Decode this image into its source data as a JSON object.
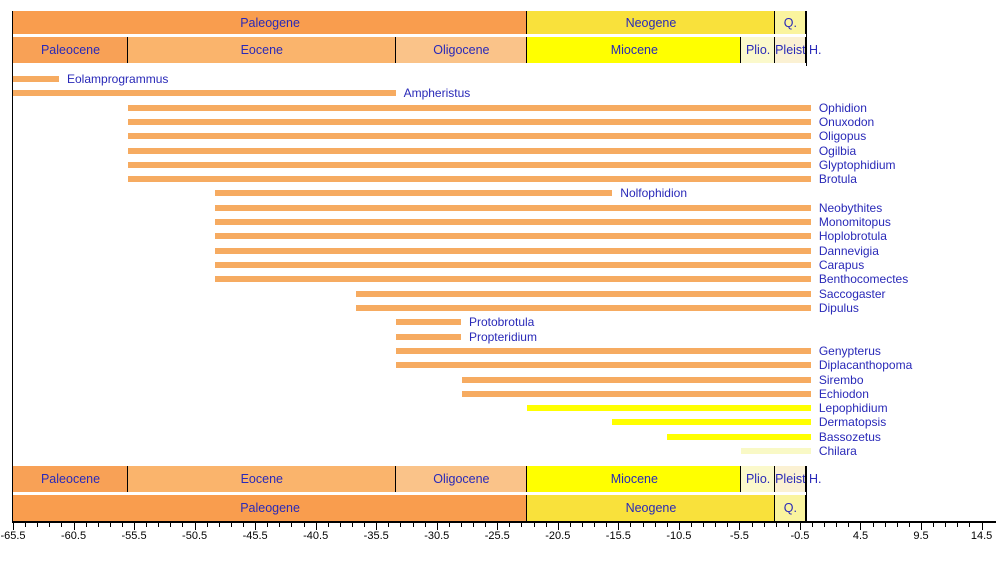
{
  "figure": {
    "colors": {
      "label_text": "#2929b8",
      "header_text": "#2929b8",
      "axis_text": "#000000",
      "line": "#000000",
      "bars": {
        "orange": "#f6ab61",
        "yellow": "#ffff00",
        "pale": "#f9f9c6"
      }
    }
  },
  "chart_data": {
    "type": "bar",
    "variant": "horizontal-stratigraphic-range-chart",
    "title": "",
    "xlabel": "",
    "ylabel": "",
    "legend": "none",
    "grid": false,
    "axis": {
      "min": -65.5,
      "max": 14.5,
      "minor_step": 1,
      "major_step": 5,
      "tick_labels": [
        "-65.5",
        "-60.5",
        "-55.5",
        "-50.5",
        "-45.5",
        "-40.5",
        "-35.5",
        "-30.5",
        "-25.5",
        "-20.5",
        "-15.5",
        "-10.5",
        "-5.5",
        "-0.5",
        "4.5",
        "9.5",
        "14.5"
      ]
    },
    "timescale_rows": {
      "periods": [
        {
          "label": "Paleogene",
          "start": -65.5,
          "end": -23.03,
          "color": "#f99d4e"
        },
        {
          "label": "Neogene",
          "start": -23.03,
          "end": -2.58,
          "color": "#f9e13b"
        },
        {
          "label": "Q.",
          "start": -2.58,
          "end": 0,
          "color": "#faf49e"
        }
      ],
      "epochs": [
        {
          "label": "Paleocene",
          "start": -65.5,
          "end": -56,
          "color": "#f8a156"
        },
        {
          "label": "Eocene",
          "start": -56,
          "end": -33.9,
          "color": "#fab46c"
        },
        {
          "label": "Oligocene",
          "start": -33.9,
          "end": -23.03,
          "color": "#fac389"
        },
        {
          "label": "Miocene",
          "start": -23.03,
          "end": -5.33,
          "color": "#ffff00"
        },
        {
          "label": "Plio.",
          "start": -5.33,
          "end": -2.58,
          "color": "#fbf9cb"
        },
        {
          "label": "Pleist",
          "start": -2.58,
          "end": 0,
          "color": "#fbf1d3"
        }
      ],
      "holocene_label": "H."
    },
    "series": [
      {
        "name": "Eolamprogrammus",
        "start": -65.5,
        "end": -61.7,
        "color": "orange"
      },
      {
        "name": "Ampheristus",
        "start": -65.5,
        "end": -33.9,
        "color": "orange"
      },
      {
        "name": "Ophidion",
        "start": -56,
        "end": 0.4,
        "color": "orange"
      },
      {
        "name": "Onuxodon",
        "start": -56,
        "end": 0.4,
        "color": "orange"
      },
      {
        "name": "Oligopus",
        "start": -56,
        "end": 0.4,
        "color": "orange"
      },
      {
        "name": "Ogilbia",
        "start": -56,
        "end": 0.4,
        "color": "orange"
      },
      {
        "name": "Glyptophidium",
        "start": -56,
        "end": 0.4,
        "color": "orange"
      },
      {
        "name": "Brotula",
        "start": -56,
        "end": 0.4,
        "color": "orange"
      },
      {
        "name": "Nolfophidion",
        "start": -48.8,
        "end": -16,
        "color": "orange"
      },
      {
        "name": "Neobythites",
        "start": -48.8,
        "end": 0.4,
        "color": "orange"
      },
      {
        "name": "Monomitopus",
        "start": -48.8,
        "end": 0.4,
        "color": "orange"
      },
      {
        "name": "Hoplobrotula",
        "start": -48.8,
        "end": 0.4,
        "color": "orange"
      },
      {
        "name": "Dannevigia",
        "start": -48.8,
        "end": 0.4,
        "color": "orange"
      },
      {
        "name": "Carapus",
        "start": -48.8,
        "end": 0.4,
        "color": "orange"
      },
      {
        "name": "Benthocomectes",
        "start": -48.8,
        "end": 0.4,
        "color": "orange"
      },
      {
        "name": "Saccogaster",
        "start": -37.2,
        "end": 0.4,
        "color": "orange"
      },
      {
        "name": "Dipulus",
        "start": -37.2,
        "end": 0.4,
        "color": "orange"
      },
      {
        "name": "Protobrotula",
        "start": -33.9,
        "end": -28.5,
        "color": "orange"
      },
      {
        "name": "Propteridium",
        "start": -33.9,
        "end": -28.5,
        "color": "orange"
      },
      {
        "name": "Genypterus",
        "start": -33.9,
        "end": 0.4,
        "color": "orange"
      },
      {
        "name": "Diplacanthopoma",
        "start": -33.9,
        "end": 0.4,
        "color": "orange"
      },
      {
        "name": "Sirembo",
        "start": -28.4,
        "end": 0.4,
        "color": "orange"
      },
      {
        "name": "Echiodon",
        "start": -28.4,
        "end": 0.4,
        "color": "orange"
      },
      {
        "name": "Lepophidium",
        "start": -23.03,
        "end": 0.4,
        "color": "yellow"
      },
      {
        "name": "Dermatopsis",
        "start": -16,
        "end": 0.4,
        "color": "yellow"
      },
      {
        "name": "Bassozetus",
        "start": -11.5,
        "end": 0.4,
        "color": "yellow"
      },
      {
        "name": "Chilara",
        "start": -5.33,
        "end": 0.4,
        "color": "pale"
      }
    ]
  }
}
